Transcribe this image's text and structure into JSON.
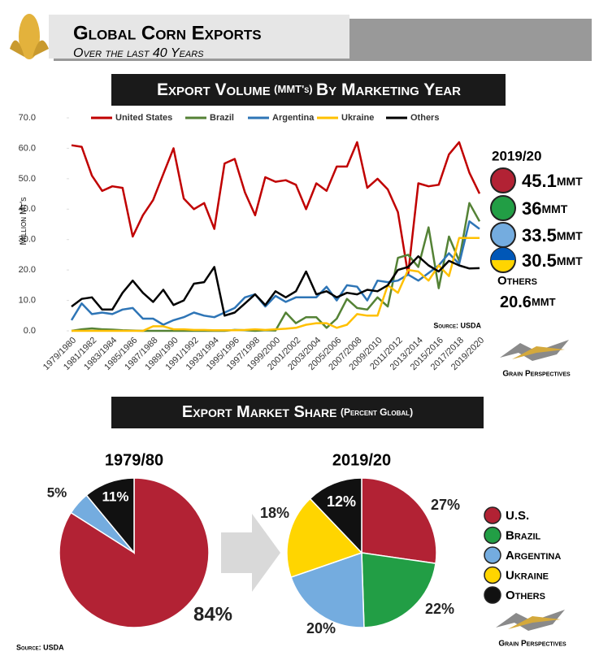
{
  "header": {
    "title": "Global Corn Exports",
    "subtitle": "Over the last 40 Years"
  },
  "sections": [
    {
      "parts": [
        "Export Volume",
        "(MMT's)",
        "By Marketing Year"
      ]
    },
    {
      "parts": [
        "Export Market Share",
        "(Percent Global)"
      ]
    }
  ],
  "chart_data": [
    {
      "type": "line",
      "ylabel": "Million Mt's",
      "source": "Source: USDA",
      "categories": [
        "1979/1980",
        null,
        "1981/1982",
        null,
        "1983/1984",
        null,
        "1985/1986",
        null,
        "1987/1988",
        null,
        "1989/1990",
        null,
        "1991/1992",
        null,
        "1993/1994",
        null,
        "1995/1996",
        null,
        "1997/1998",
        null,
        "1999/2000",
        null,
        "2001/2002",
        null,
        "2003/2004",
        null,
        "2005/2006",
        null,
        "2007/2008",
        null,
        "2009/2010",
        null,
        "2011/2012",
        null,
        "2013/2014",
        null,
        "2015/2016",
        null,
        "2017/2018",
        null,
        "2019/2020"
      ],
      "ylim": [
        0,
        70
      ],
      "yticks": [
        {
          "value": 0,
          "label": "0.0"
        },
        {
          "value": 10,
          "label": "10.0"
        },
        {
          "value": 20,
          "label": "20.0"
        },
        {
          "value": 30,
          "label": "30.0"
        },
        {
          "value": 40,
          "label": "40.0"
        },
        {
          "value": 50,
          "label": "50.0"
        },
        {
          "value": 60,
          "label": "60.0"
        },
        {
          "value": 70,
          "label": "70.0"
        }
      ],
      "series": [
        {
          "name": "United States",
          "color": "#c00000",
          "values": [
            61,
            60.5,
            51,
            46,
            47.5,
            47,
            31,
            38,
            43,
            51.5,
            60,
            43.5,
            40,
            42,
            33.5,
            55,
            56.5,
            45.5,
            38,
            50.5,
            49,
            49.5,
            48,
            40,
            48.5,
            46,
            54,
            54,
            62,
            47,
            50,
            46.5,
            39,
            18.5,
            48.5,
            47.5,
            48,
            58,
            62,
            52,
            45.1
          ]
        },
        {
          "name": "Brazil",
          "color": "#548235",
          "values": [
            0,
            0.5,
            0.8,
            0.5,
            0.4,
            0.2,
            0.1,
            0,
            0,
            0,
            0,
            0,
            0,
            0,
            0,
            0,
            0.3,
            0.2,
            0,
            0.2,
            0.1,
            6,
            2.5,
            4.5,
            4.5,
            1,
            4,
            10.5,
            7.5,
            7,
            11,
            8,
            24,
            25,
            21,
            34,
            14,
            31,
            23,
            42,
            36
          ]
        },
        {
          "name": "Argentina",
          "color": "#2e75b6",
          "values": [
            3.5,
            9,
            5.5,
            6,
            5.5,
            7,
            7.5,
            4,
            4,
            2,
            3.5,
            4.5,
            6,
            5,
            4.5,
            6,
            7.5,
            11,
            12,
            8,
            11.5,
            9.5,
            11,
            11,
            11,
            14.5,
            10,
            15,
            14.5,
            10,
            16.5,
            16,
            16.5,
            18.5,
            16.5,
            19,
            21.5,
            25.5,
            22,
            36,
            33.5
          ]
        },
        {
          "name": "Ukraine",
          "color": "#ffc000",
          "values": [
            0,
            0,
            0,
            0,
            0,
            0,
            0,
            0,
            1.5,
            1.5,
            0.5,
            0.5,
            0.3,
            0.3,
            0.2,
            0.2,
            0.2,
            0.3,
            0.5,
            0.3,
            0.5,
            0.7,
            1,
            2,
            2.5,
            2.5,
            1,
            2,
            5.5,
            5,
            5,
            15,
            12.5,
            20,
            19.5,
            16.5,
            21.5,
            18,
            30.5,
            30.5,
            30.5
          ]
        },
        {
          "name": "Others",
          "color": "#000000",
          "values": [
            8,
            10.5,
            11,
            7,
            7,
            12.5,
            16.5,
            12.5,
            9.5,
            13.5,
            8.5,
            10,
            15.5,
            16,
            21,
            5,
            6,
            9,
            12,
            8.5,
            13,
            11,
            13,
            19.5,
            12,
            13,
            11,
            12.5,
            12,
            13.5,
            13,
            15,
            20,
            21,
            24.5,
            21.5,
            19.5,
            23,
            21.5,
            20.5,
            20.6
          ]
        }
      ]
    },
    {
      "type": "pie",
      "title": "1979/80",
      "values": [
        84,
        5,
        11
      ],
      "value_labels": [
        "84%",
        "5%",
        "11%"
      ],
      "colors": [
        "#b22234",
        "#74acdf",
        "#111111"
      ]
    },
    {
      "type": "pie",
      "title": "2019/20",
      "categories": [
        "U.S.",
        "Brazil",
        "Argentina",
        "Ukraine",
        "Others"
      ],
      "values": [
        27,
        22,
        20,
        18,
        12
      ],
      "value_labels": [
        "27%",
        "22%",
        "20%",
        "18%",
        "12%"
      ],
      "colors": [
        "#b22234",
        "#229e45",
        "#74acdf",
        "#ffd500",
        "#111111"
      ]
    }
  ],
  "side": {
    "title": "2019/20",
    "unit": "MMT",
    "others_label": "Others"
  },
  "source": "Source: USDA",
  "logo": "Grain Perspectives"
}
